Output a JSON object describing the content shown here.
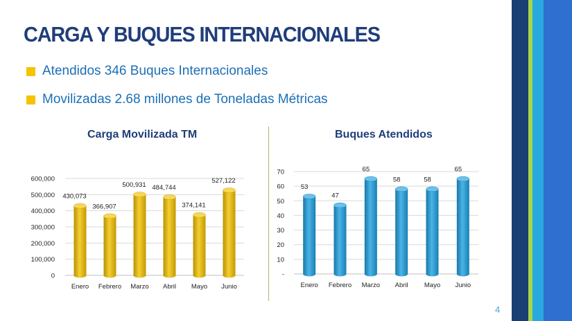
{
  "slide": {
    "title": "CARGA Y BUQUES INTERNACIONALES",
    "bullets": [
      "Atendidos 346 Buques Internacionales",
      "Movilizadas 2.68 millones de Toneladas Métricas"
    ],
    "page_number": "4"
  },
  "colors": {
    "title": "#1f3d7a",
    "bullet_text": "#1b6fb5",
    "bullet_marker": "#f5c400",
    "cargo_bars": "#f2c200",
    "ships_bars": "#1ea0e0"
  },
  "chart_data": [
    {
      "type": "bar",
      "title": "Carga Movilizada TM",
      "categories": [
        "Enero",
        "Febrero",
        "Marzo",
        "Abril",
        "Mayo",
        "Junio"
      ],
      "values": [
        430073,
        366907,
        500931,
        484744,
        374141,
        527122
      ],
      "value_labels": [
        "430,073",
        "366,907",
        "500,931",
        "484,744",
        "374,141",
        "527,122"
      ],
      "ylim": [
        0,
        600000
      ],
      "yticks": [
        0,
        100000,
        200000,
        300000,
        400000,
        500000,
        600000
      ],
      "ytick_labels": [
        "0",
        "100,000",
        "200,000",
        "300,000",
        "400,000",
        "500,000",
        "600,000"
      ],
      "xlabel": "",
      "ylabel": "",
      "grid": true,
      "legend": "none",
      "style": "3d-cylinder"
    },
    {
      "type": "bar",
      "title": "Buques Atendidos",
      "categories": [
        "Enero",
        "Febrero",
        "Marzo",
        "Abril",
        "Mayo",
        "Junio"
      ],
      "values": [
        53,
        47,
        65,
        58,
        58,
        65
      ],
      "value_labels": [
        "53",
        "47",
        "65",
        "58",
        "58",
        "65"
      ],
      "ylim": [
        0,
        70
      ],
      "yticks": [
        0,
        10,
        20,
        30,
        40,
        50,
        60,
        70
      ],
      "ytick_labels": [
        "-",
        "10",
        "20",
        "30",
        "40",
        "50",
        "60",
        "70"
      ],
      "xlabel": "",
      "ylabel": "",
      "grid": true,
      "legend": "none",
      "style": "3d-cylinder"
    }
  ]
}
